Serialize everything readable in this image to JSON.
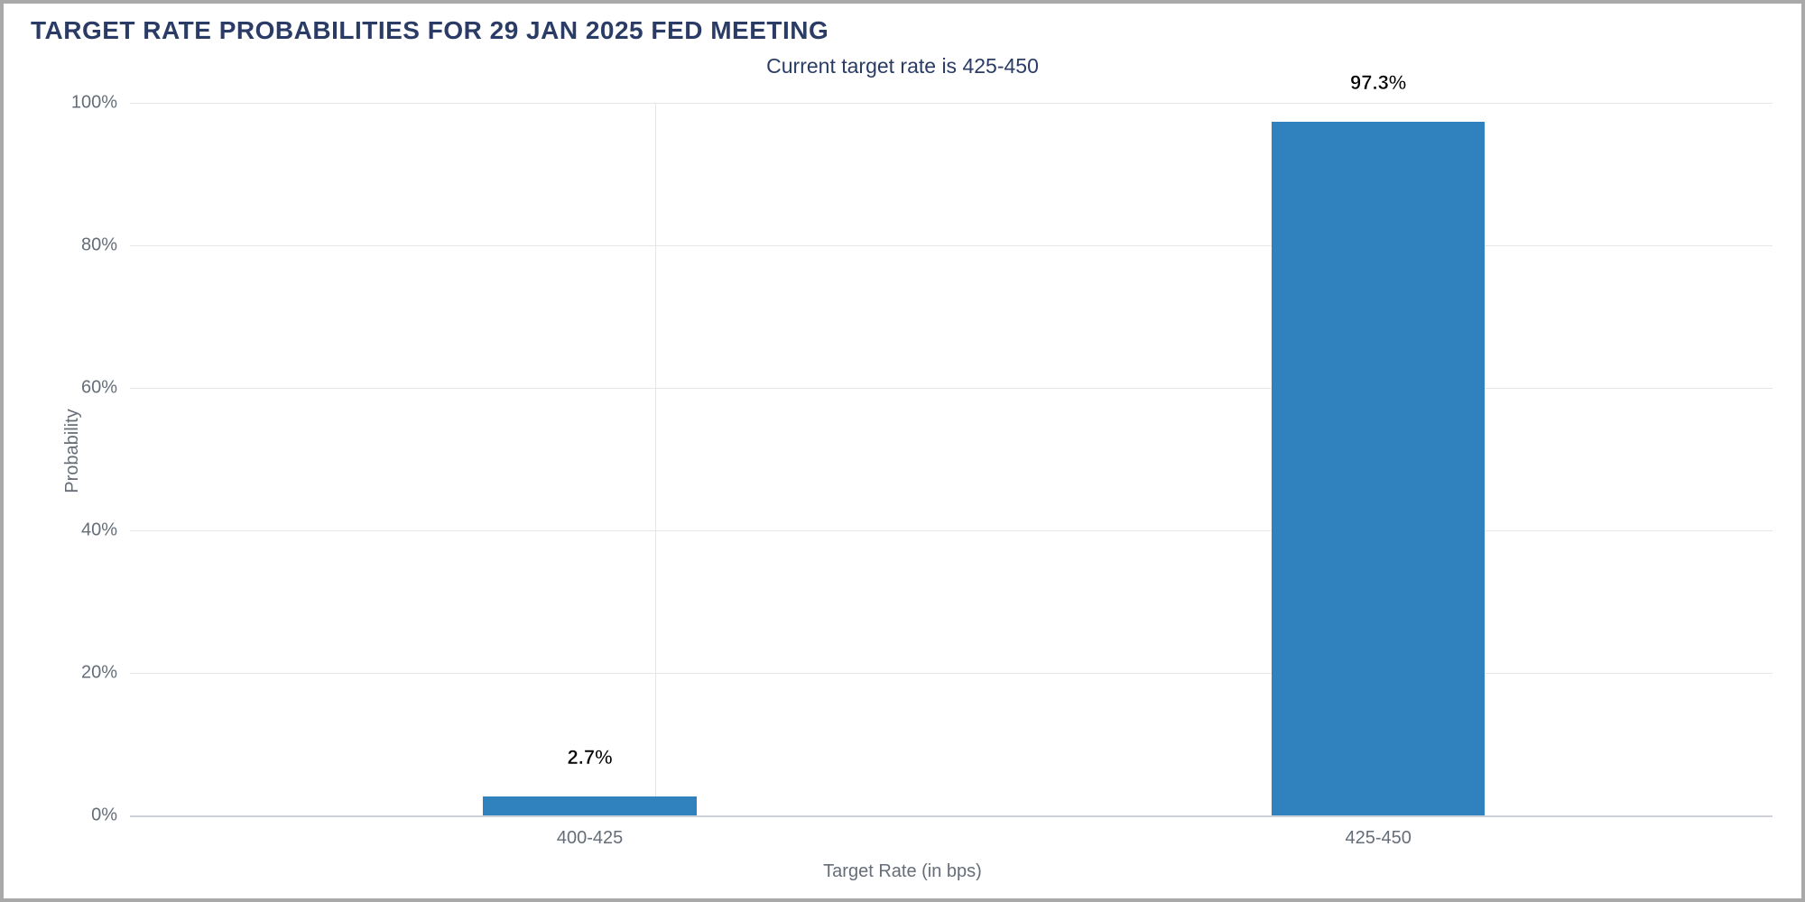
{
  "chart": {
    "type": "bar",
    "main_title": "TARGET RATE PROBABILITIES FOR 29 JAN 2025 FED MEETING",
    "subtitle": "Current target rate is 425-450",
    "title_color": "#2a3c66",
    "subtitle_color": "#2a3c66",
    "title_fontsize": 28,
    "subtitle_fontsize": 23,
    "yaxis": {
      "title": "Probability",
      "min": 0,
      "max": 100,
      "ticks": [
        0,
        20,
        40,
        60,
        80,
        100
      ],
      "tick_labels": [
        "0%",
        "20%",
        "40%",
        "60%",
        "80%",
        "100%"
      ]
    },
    "xaxis": {
      "title": "Target Rate (in bps)"
    },
    "axis_label_color": "#656e78",
    "grid": {
      "major_color": "#e6e6e6",
      "baseline_color": "#cfd3d8",
      "vertical_color": "#e6e6e6",
      "vertical_position_pct": 32
    },
    "bar_color": "#3082be",
    "bar_width_pct": 13,
    "background_color": "#ffffff",
    "data": [
      {
        "category": "400-425",
        "value": 2.7,
        "label": "2.7%",
        "center_pct": 28
      },
      {
        "category": "425-450",
        "value": 97.3,
        "label": "97.3%",
        "center_pct": 76
      }
    ]
  }
}
